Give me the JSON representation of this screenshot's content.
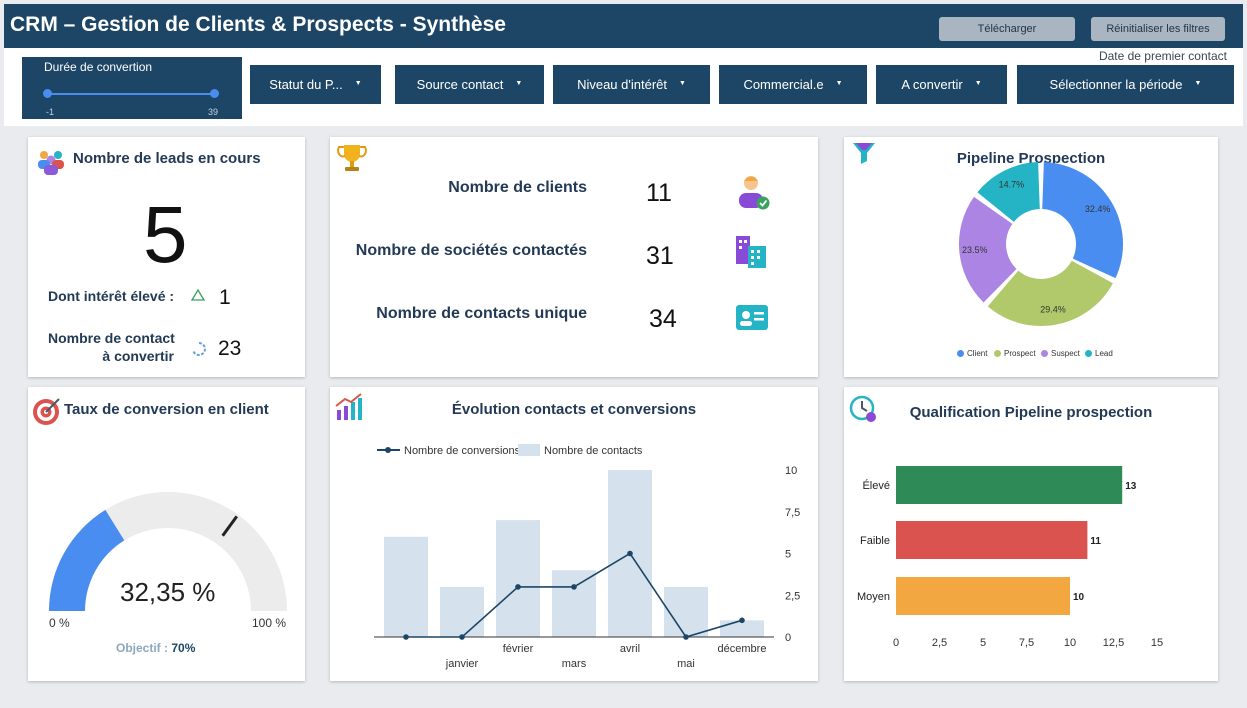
{
  "header": {
    "title": "CRM – Gestion de Clients & Prospects - Synthèse",
    "download_label": "Télécharger",
    "reset_label": "Réinitialiser les filtres"
  },
  "filters": {
    "period_note": "Date de premier contact",
    "slider": {
      "label": "Durée de convertion",
      "min": "-1",
      "max": "39",
      "range": [
        -1,
        39
      ]
    },
    "dropdowns": [
      "Statut du P...",
      "Source contact",
      "Niveau d'intérêt",
      "Commercial.e",
      "A convertir",
      "Sélectionner la période"
    ]
  },
  "leads": {
    "title": "Nombre de leads en cours",
    "value": "5",
    "high_interest_label": "Dont intérêt élevé :",
    "high_interest_value": "1",
    "to_convert_label_1": "Nombre de contact",
    "to_convert_label_2": "à convertir",
    "to_convert_value": "23"
  },
  "clients": {
    "items": [
      {
        "label": "Nombre de clients",
        "value": "11",
        "icon": "client-user-icon"
      },
      {
        "label": "Nombre de sociétés contactés",
        "value": "31",
        "icon": "companies-icon"
      },
      {
        "label": "Nombre de contacts unique",
        "value": "34",
        "icon": "contact-card-icon"
      }
    ]
  },
  "pipeline": {
    "title": "Pipeline Prospection",
    "legend": [
      "Client",
      "Prospect",
      "Suspect",
      "Lead"
    ]
  },
  "conversion": {
    "title": "Taux de conversion en client",
    "value_text": "32,35 %",
    "min_label": "0 %",
    "max_label": "100 %",
    "objectif_label": "Objectif :",
    "objectif_value": "70%"
  },
  "evolution": {
    "title": "Évolution contacts et conversions",
    "legend_line": "Nombre de conversions",
    "legend_bar": "Nombre de contacts"
  },
  "qualification": {
    "title": "Qualification Pipeline prospection"
  },
  "colors": {
    "navy": "#1d4565",
    "client": "#4a8df0",
    "prospect": "#b2c96b",
    "suspect": "#ac84e3",
    "lead": "#25b4c6",
    "eleve": "#2e8b57",
    "faible": "#db534e",
    "moyen": "#f2a741",
    "bars": "#d5e2ee"
  },
  "chart_data": [
    {
      "type": "pie",
      "title": "Pipeline Prospection",
      "categories": [
        "Client",
        "Prospect",
        "Suspect",
        "Lead"
      ],
      "values": [
        32.4,
        29.4,
        23.5,
        14.7
      ],
      "labels": [
        "32.4%",
        "29.4%",
        "23.5%",
        "14.7%"
      ],
      "legend": "bottom"
    },
    {
      "type": "bar",
      "title": "Évolution contacts et conversions",
      "categories": [
        "",
        "janvier",
        "février",
        "mars",
        "avril",
        "mai",
        "décembre"
      ],
      "series": [
        {
          "name": "Nombre de contacts",
          "type": "bar",
          "values": [
            6,
            3,
            7,
            4,
            10,
            3,
            1
          ]
        },
        {
          "name": "Nombre de conversions",
          "type": "line",
          "values": [
            0,
            0,
            3,
            3,
            5,
            0,
            1
          ]
        }
      ],
      "ylim": [
        0,
        10
      ],
      "yticks": [
        "0",
        "2,5",
        "5",
        "7,5",
        "10"
      ],
      "legend": "top-left"
    },
    {
      "type": "bar",
      "orientation": "horizontal",
      "title": "Qualification Pipeline prospection",
      "categories": [
        "Élevé",
        "Faible",
        "Moyen"
      ],
      "values": [
        13,
        11,
        10
      ],
      "xlim": [
        0,
        15
      ],
      "xticks": [
        "0",
        "2,5",
        "5",
        "7,5",
        "10",
        "12,5",
        "15"
      ]
    }
  ]
}
